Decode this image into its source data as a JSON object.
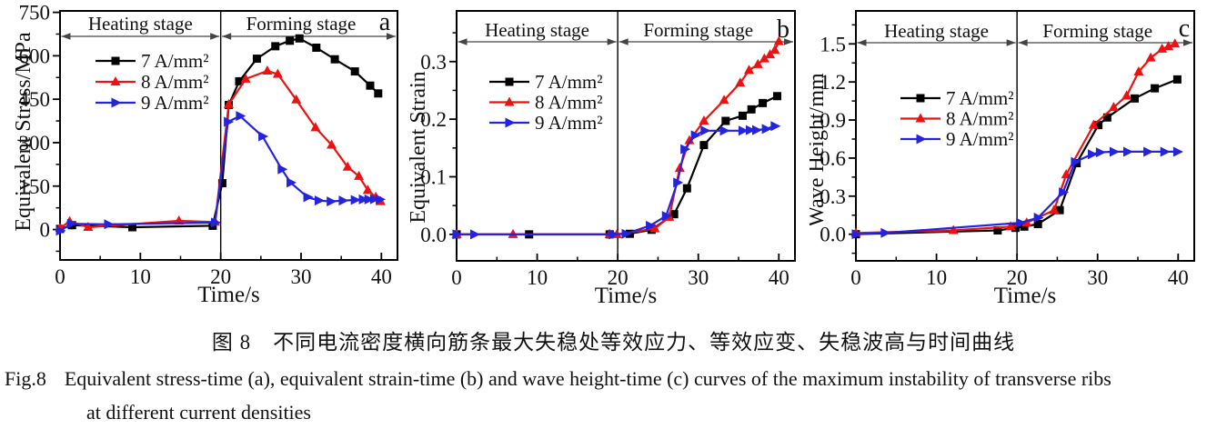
{
  "figure_captions": {
    "zh": "图 8　不同电流密度横向筋条最大失稳处等效应力、等效应变、失稳波高与时间曲线",
    "en_label": "Fig.8",
    "en_line1": "Equivalent stress-time (a), equivalent strain-time (b) and wave height-time (c) curves of the maximum instability of transverse ribs",
    "en_line2": "at different current densities"
  },
  "stages": {
    "heating_label": "Heating stage",
    "forming_label": "Forming stage",
    "divider_time": 20
  },
  "legend_labels": [
    "7 A/mm²",
    "8 A/mm²",
    "9 A/mm²"
  ],
  "chart_data": [
    {
      "type": "line",
      "panel": "a",
      "xlabel": "Time/s",
      "ylabel": "Equivalent Stress/MPa",
      "xlim": [
        0,
        42
      ],
      "ylim": [
        -105,
        755
      ],
      "xticks": [
        0,
        10,
        20,
        30,
        40
      ],
      "xtick_labels": [
        "0",
        "10",
        "20",
        "30",
        "40"
      ],
      "xtick_minor_step": 5,
      "yticks": [
        0,
        150,
        300,
        450,
        600,
        750
      ],
      "ytick_labels": [
        "0",
        "150",
        "300",
        "450",
        "600",
        "750"
      ],
      "ytick_minor_step": 75,
      "grid": false,
      "legend_position": "upper-left-inside",
      "series": [
        {
          "name": "7 A/mm²",
          "color": "#000000",
          "marker": "square",
          "points": [
            [
              0,
              2
            ],
            [
              1.5,
              15
            ],
            [
              9,
              8
            ],
            [
              19,
              13
            ],
            [
              20.2,
              160
            ],
            [
              21,
              430
            ],
            [
              22.3,
              512
            ],
            [
              24.5,
              590
            ],
            [
              26.8,
              633
            ],
            [
              28.6,
              652
            ],
            [
              29.8,
              660
            ],
            [
              31.9,
              628
            ],
            [
              34.2,
              588
            ],
            [
              36.7,
              546
            ],
            [
              38.6,
              497
            ],
            [
              39.6,
              470
            ]
          ]
        },
        {
          "name": "8 A/mm²",
          "color": "#ee1111",
          "marker": "triangle-up",
          "points": [
            [
              0,
              5
            ],
            [
              1.2,
              28
            ],
            [
              3.5,
              8
            ],
            [
              14.8,
              30
            ],
            [
              19.3,
              26
            ],
            [
              21,
              432
            ],
            [
              23.1,
              520
            ],
            [
              25.8,
              548
            ],
            [
              27.1,
              537
            ],
            [
              29.4,
              448
            ],
            [
              31.8,
              352
            ],
            [
              33.8,
              292
            ],
            [
              35.8,
              216
            ],
            [
              37.2,
              184
            ],
            [
              38.3,
              136
            ],
            [
              39.3,
              112
            ],
            [
              39.9,
              97
            ]
          ]
        },
        {
          "name": "9 A/mm²",
          "color": "#2323e0",
          "marker": "triangle-right",
          "points": [
            [
              0,
              -4
            ],
            [
              1.4,
              20
            ],
            [
              6,
              18
            ],
            [
              19.3,
              24
            ],
            [
              20.9,
              372
            ],
            [
              22.4,
              392
            ],
            [
              25.2,
              322
            ],
            [
              27.6,
              208
            ],
            [
              28.7,
              162
            ],
            [
              30.8,
              112
            ],
            [
              32.2,
              100
            ],
            [
              33.7,
              97
            ],
            [
              35.2,
              100
            ],
            [
              36.7,
              102
            ],
            [
              37.7,
              104
            ],
            [
              38.4,
              104
            ],
            [
              39.1,
              105
            ],
            [
              39.8,
              104
            ]
          ]
        }
      ]
    },
    {
      "type": "line",
      "panel": "b",
      "xlabel": "Time/s",
      "ylabel": "Equivalent Strain",
      "xlim": [
        0,
        42
      ],
      "ylim": [
        -0.046,
        0.388
      ],
      "xticks": [
        0,
        10,
        20,
        30,
        40
      ],
      "xtick_labels": [
        "0",
        "10",
        "20",
        "30",
        "40"
      ],
      "xtick_minor_step": 5,
      "yticks": [
        0,
        0.1,
        0.2,
        0.3
      ],
      "ytick_labels": [
        "0.0",
        "0.1",
        "0.2",
        "0.3"
      ],
      "ytick_minor_step": 0.05,
      "grid": false,
      "legend_position": "upper-left-inside",
      "series": [
        {
          "name": "7 A/mm²",
          "color": "#000000",
          "marker": "square",
          "points": [
            [
              0,
              0
            ],
            [
              9,
              0
            ],
            [
              19,
              0
            ],
            [
              21.5,
              0.001
            ],
            [
              24.2,
              0.008
            ],
            [
              27,
              0.035
            ],
            [
              28.6,
              0.08
            ],
            [
              30.7,
              0.155
            ],
            [
              33.4,
              0.197
            ],
            [
              35.5,
              0.206
            ],
            [
              36.6,
              0.217
            ],
            [
              38,
              0.228
            ],
            [
              39.8,
              0.24
            ]
          ]
        },
        {
          "name": "8 A/mm²",
          "color": "#ee1111",
          "marker": "triangle-up",
          "points": [
            [
              0,
              0
            ],
            [
              7,
              0
            ],
            [
              19,
              0
            ],
            [
              19.9,
              0
            ],
            [
              24.6,
              0.01
            ],
            [
              26.4,
              0.03
            ],
            [
              27.7,
              0.115
            ],
            [
              28.9,
              0.163
            ],
            [
              30.7,
              0.197
            ],
            [
              33.2,
              0.233
            ],
            [
              35.2,
              0.263
            ],
            [
              36.3,
              0.285
            ],
            [
              37.4,
              0.295
            ],
            [
              38.2,
              0.305
            ],
            [
              38.9,
              0.312
            ],
            [
              39.5,
              0.32
            ],
            [
              40,
              0.335
            ]
          ]
        },
        {
          "name": "9 A/mm²",
          "color": "#2323e0",
          "marker": "triangle-right",
          "points": [
            [
              0,
              0
            ],
            [
              2.2,
              0
            ],
            [
              19.4,
              0
            ],
            [
              21,
              0.001
            ],
            [
              24,
              0.015
            ],
            [
              26,
              0.032
            ],
            [
              27.4,
              0.09
            ],
            [
              28.3,
              0.148
            ],
            [
              29.6,
              0.172
            ],
            [
              30.8,
              0.18
            ],
            [
              33.2,
              0.18
            ],
            [
              35.5,
              0.18
            ],
            [
              36.4,
              0.181
            ],
            [
              37.2,
              0.181
            ],
            [
              38.4,
              0.183
            ],
            [
              39.5,
              0.188
            ]
          ]
        }
      ]
    },
    {
      "type": "line",
      "panel": "c",
      "xlabel": "Time/s",
      "ylabel": "Wave Height/mm",
      "xlim": [
        0,
        42
      ],
      "ylim": [
        -0.21,
        1.76
      ],
      "xticks": [
        0,
        10,
        20,
        30,
        40
      ],
      "xtick_labels": [
        "0",
        "10",
        "20",
        "30",
        "40"
      ],
      "xtick_minor_step": 5,
      "yticks": [
        0,
        0.3,
        0.6,
        0.9,
        1.2,
        1.5
      ],
      "ytick_labels": [
        "0.0",
        "0.3",
        "0.6",
        "0.9",
        "1.2",
        "1.5"
      ],
      "ytick_minor_step": 0.15,
      "grid": false,
      "legend_position": "upper-left-inside",
      "series": [
        {
          "name": "7 A/mm²",
          "color": "#000000",
          "marker": "square",
          "points": [
            [
              0,
              0
            ],
            [
              17.6,
              0.03
            ],
            [
              19.8,
              0.05
            ],
            [
              20.9,
              0.06
            ],
            [
              22.6,
              0.08
            ],
            [
              25.3,
              0.19
            ],
            [
              27.4,
              0.56
            ],
            [
              30.1,
              0.86
            ],
            [
              31.2,
              0.92
            ],
            [
              34.6,
              1.07
            ],
            [
              37.1,
              1.15
            ],
            [
              39.9,
              1.22
            ]
          ]
        },
        {
          "name": "8 A/mm²",
          "color": "#ee1111",
          "marker": "triangle-up",
          "points": [
            [
              0,
              0.01
            ],
            [
              12.1,
              0.03
            ],
            [
              19.2,
              0.06
            ],
            [
              21.2,
              0.09
            ],
            [
              24.6,
              0.19
            ],
            [
              26.1,
              0.47
            ],
            [
              29.5,
              0.86
            ],
            [
              32,
              1.0
            ],
            [
              33.6,
              1.09
            ],
            [
              35.1,
              1.28
            ],
            [
              36.6,
              1.39
            ],
            [
              38,
              1.46
            ],
            [
              38.8,
              1.48
            ],
            [
              39.6,
              1.5
            ]
          ]
        },
        {
          "name": "9 A/mm²",
          "color": "#2323e0",
          "marker": "triangle-right",
          "points": [
            [
              0,
              0
            ],
            [
              3.6,
              0.01
            ],
            [
              20.4,
              0.09
            ],
            [
              22.6,
              0.13
            ],
            [
              25.7,
              0.33
            ],
            [
              27.2,
              0.57
            ],
            [
              29.3,
              0.63
            ],
            [
              30.3,
              0.645
            ],
            [
              32,
              0.65
            ],
            [
              33.7,
              0.65
            ],
            [
              36.2,
              0.65
            ],
            [
              38.3,
              0.65
            ],
            [
              39.9,
              0.65
            ]
          ]
        }
      ]
    }
  ]
}
